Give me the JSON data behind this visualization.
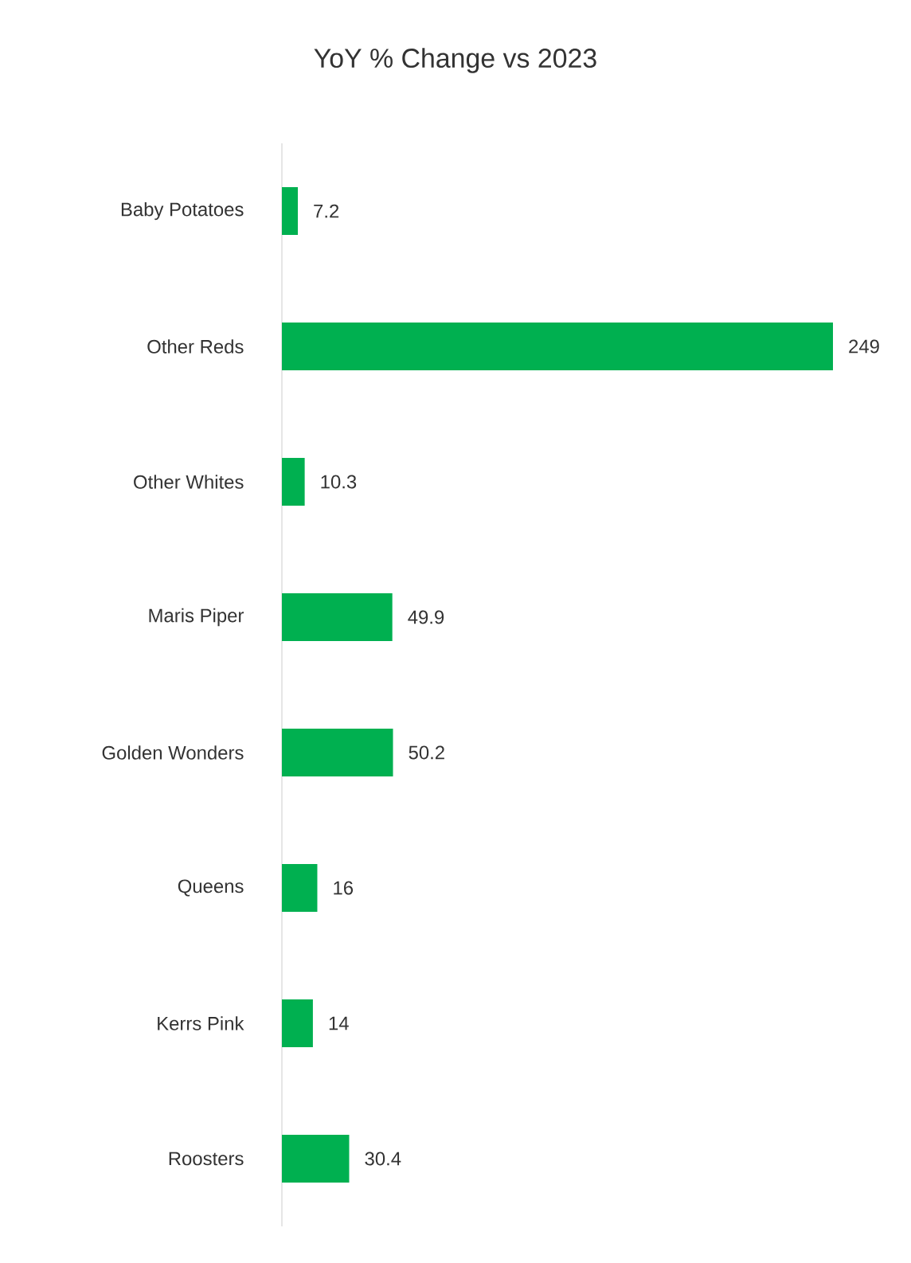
{
  "chart_data": {
    "type": "bar",
    "orientation": "horizontal",
    "title": "YoY % Change vs 2023",
    "categories": [
      "Baby Potatoes",
      "Other Reds",
      "Other Whites",
      "Maris Piper",
      "Golden Wonders",
      "Queens",
      "Kerrs Pink",
      "Roosters"
    ],
    "values": [
      7.2,
      249,
      10.3,
      49.9,
      50.2,
      16,
      14,
      30.4
    ],
    "color": "#00b050",
    "data_labels": true,
    "tick_labels": "y"
  }
}
